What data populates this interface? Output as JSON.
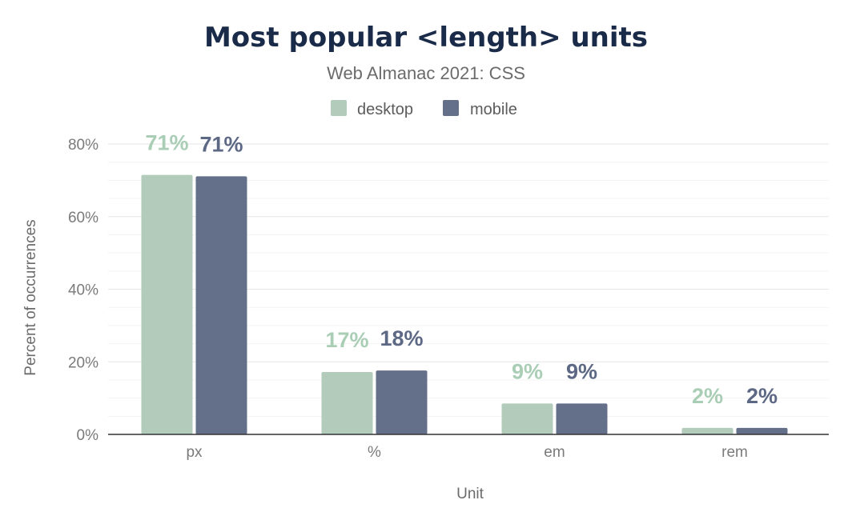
{
  "chart_data": {
    "type": "bar",
    "title": "Most popular <length> units",
    "subtitle": "Web Almanac 2021: CSS",
    "xlabel": "Unit",
    "ylabel": "Percent of occurrences",
    "categories": [
      "px",
      "%",
      "em",
      "rem"
    ],
    "series": [
      {
        "name": "desktop",
        "color": "#b2cbbb",
        "values": [
          71.5,
          17.2,
          8.5,
          1.8
        ],
        "labels": [
          "71%",
          "17%",
          "9%",
          "2%"
        ]
      },
      {
        "name": "mobile",
        "color": "#646f89",
        "values": [
          71.1,
          17.6,
          8.5,
          1.8
        ],
        "labels": [
          "71%",
          "18%",
          "9%",
          "2%"
        ]
      }
    ],
    "ylim": [
      0,
      80
    ],
    "yticks": [
      0,
      20,
      40,
      60,
      80
    ],
    "ytick_labels": [
      "0%",
      "20%",
      "40%",
      "60%",
      "80%"
    ],
    "grid": true,
    "legend_position": "top-center"
  }
}
